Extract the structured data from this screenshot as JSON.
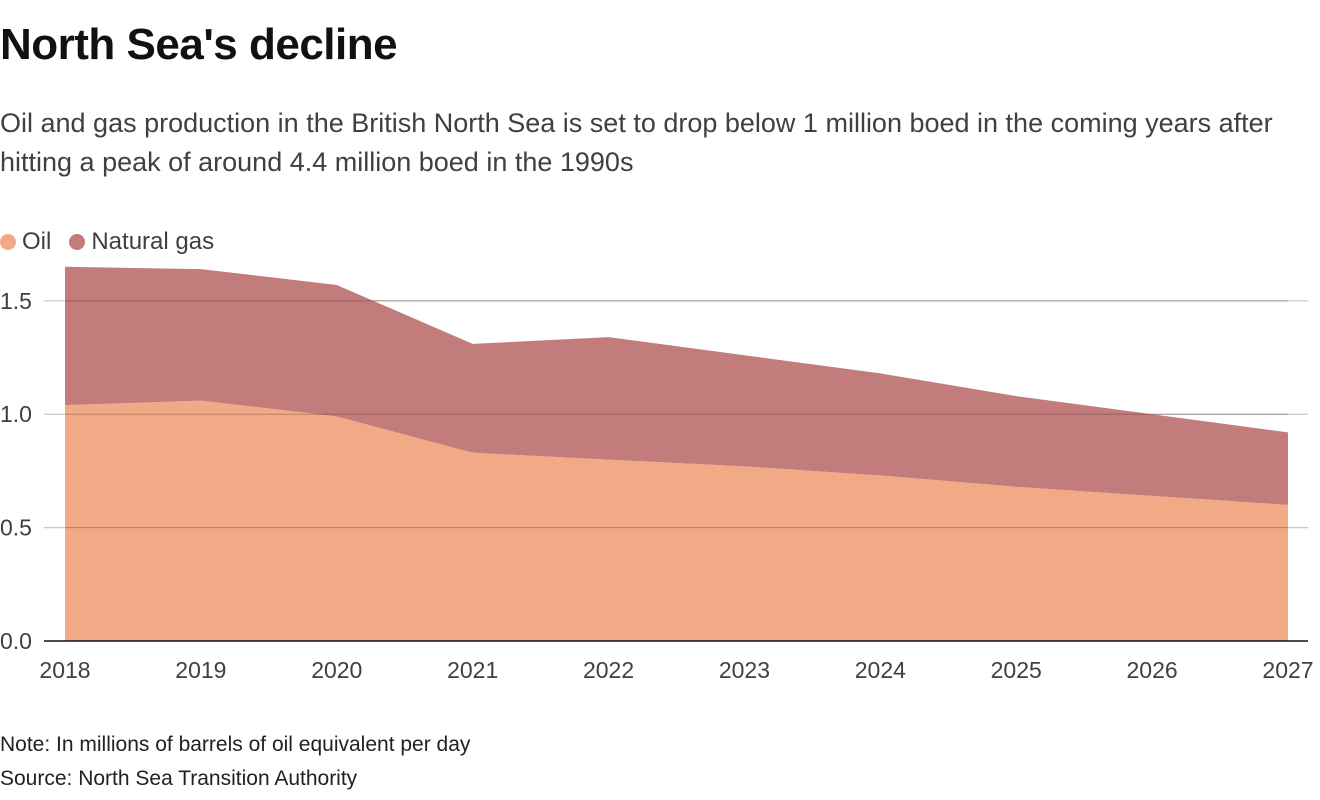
{
  "chart_data": {
    "type": "area",
    "stacked": true,
    "title": "North Sea's decline",
    "subtitle": "Oil and gas production in the British North Sea is set to drop below 1 million boed in the coming years after hitting a peak of around 4.4 million boed in the 1990s",
    "x": [
      "2018",
      "2019",
      "2020",
      "2021",
      "2022",
      "2023",
      "2024",
      "2025",
      "2026",
      "2027"
    ],
    "series": [
      {
        "name": "Oil",
        "color": "#f2aa86",
        "values": [
          1.04,
          1.06,
          0.99,
          0.83,
          0.8,
          0.77,
          0.73,
          0.68,
          0.64,
          0.6
        ]
      },
      {
        "name": "Natural gas",
        "color": "#c27c7c",
        "values": [
          0.61,
          0.58,
          0.58,
          0.48,
          0.54,
          0.49,
          0.45,
          0.4,
          0.36,
          0.32
        ]
      }
    ],
    "yticks": [
      0,
      0.5,
      1.0,
      1.5
    ],
    "ytick_labels": [
      "0.0",
      "0.5",
      "1.0",
      "1.5"
    ],
    "ylim": [
      0,
      1.68
    ],
    "grid": true,
    "legend_position": "top-left",
    "note": "Note: In millions of barrels of oil equivalent per day",
    "source": "Source: North Sea Transition Authority"
  }
}
